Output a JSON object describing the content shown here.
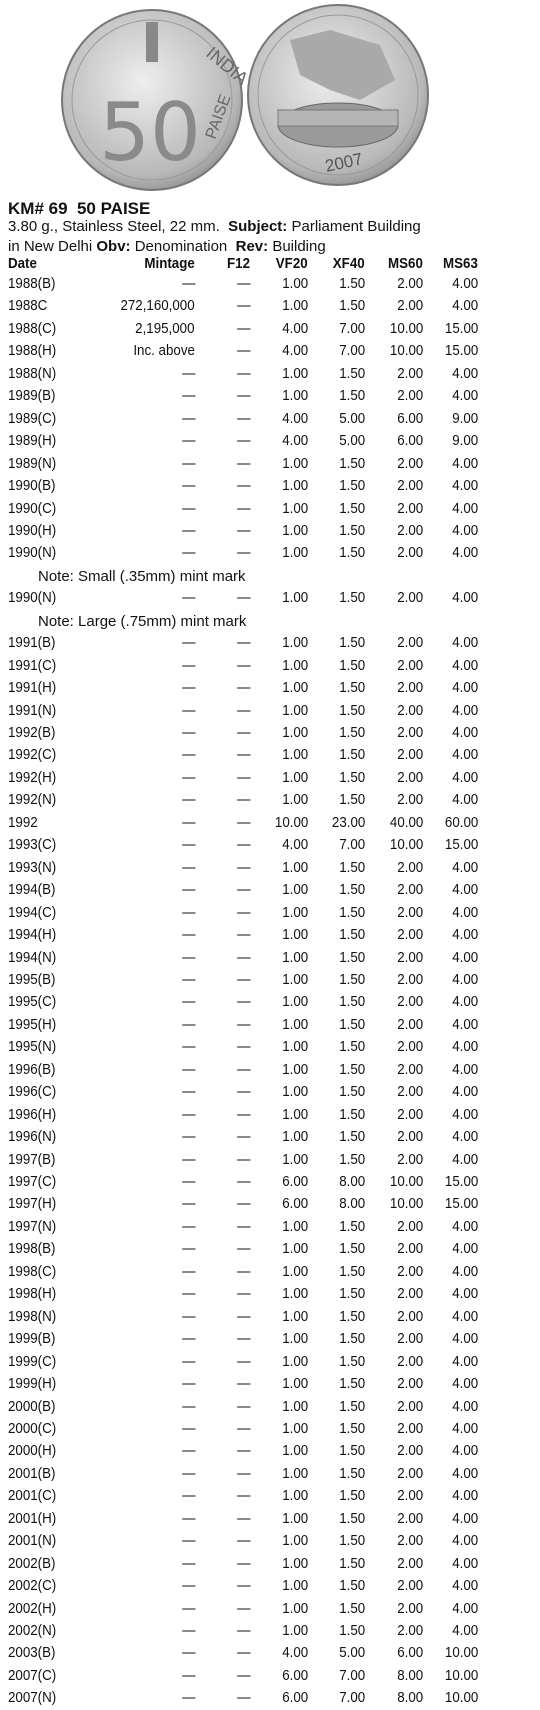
{
  "coins": {
    "obverse": {
      "legend": "INDIA",
      "denomination": "50",
      "unit": "PAISE"
    },
    "reverse": {
      "date": "2007"
    }
  },
  "header": {
    "title": "KM# 69  50 PAISE",
    "weight_metal": "3.80 g., Stainless Steel, 22 mm.",
    "subject_label": "Subject:",
    "subject": "Parliament Building",
    "subject_cont": "in New Delhi",
    "obv_label": "Obv:",
    "obv": "Denomination",
    "rev_label": "Rev:",
    "rev": "Building"
  },
  "table": {
    "columns": [
      "Date",
      "Mintage",
      "F12",
      "VF20",
      "XF40",
      "MS60",
      "MS63"
    ],
    "rows": [
      [
        "1988(B)",
        "—",
        "—",
        "1.00",
        "1.50",
        "2.00",
        "4.00"
      ],
      [
        "1988C",
        "272,160,000",
        "—",
        "1.00",
        "1.50",
        "2.00",
        "4.00"
      ],
      [
        "1988(C)",
        "2,195,000",
        "—",
        "4.00",
        "7.00",
        "10.00",
        "15.00"
      ],
      [
        "1988(H)",
        "Inc. above",
        "—",
        "4.00",
        "7.00",
        "10.00",
        "15.00"
      ],
      [
        "1988(N)",
        "—",
        "—",
        "1.00",
        "1.50",
        "2.00",
        "4.00"
      ],
      [
        "1989(B)",
        "—",
        "—",
        "1.00",
        "1.50",
        "2.00",
        "4.00"
      ],
      [
        "1989(C)",
        "—",
        "—",
        "4.00",
        "5.00",
        "6.00",
        "9.00"
      ],
      [
        "1989(H)",
        "—",
        "—",
        "4.00",
        "5.00",
        "6.00",
        "9.00"
      ],
      [
        "1989(N)",
        "—",
        "—",
        "1.00",
        "1.50",
        "2.00",
        "4.00"
      ],
      [
        "1990(B)",
        "—",
        "—",
        "1.00",
        "1.50",
        "2.00",
        "4.00"
      ],
      [
        "1990(C)",
        "—",
        "—",
        "1.00",
        "1.50",
        "2.00",
        "4.00"
      ],
      [
        "1990(H)",
        "—",
        "—",
        "1.00",
        "1.50",
        "2.00",
        "4.00"
      ],
      [
        "1990(N)",
        "—",
        "—",
        "1.00",
        "1.50",
        "2.00",
        "4.00"
      ],
      {
        "note": "Note: Small (.35mm) mint mark"
      },
      [
        "1990(N)",
        "—",
        "—",
        "1.00",
        "1.50",
        "2.00",
        "4.00"
      ],
      {
        "note": "Note: Large (.75mm) mint mark"
      },
      [
        "1991(B)",
        "—",
        "—",
        "1.00",
        "1.50",
        "2.00",
        "4.00"
      ],
      [
        "1991(C)",
        "—",
        "—",
        "1.00",
        "1.50",
        "2.00",
        "4.00"
      ],
      [
        "1991(H)",
        "—",
        "—",
        "1.00",
        "1.50",
        "2.00",
        "4.00"
      ],
      [
        "1991(N)",
        "—",
        "—",
        "1.00",
        "1.50",
        "2.00",
        "4.00"
      ],
      [
        "1992(B)",
        "—",
        "—",
        "1.00",
        "1.50",
        "2.00",
        "4.00"
      ],
      [
        "1992(C)",
        "—",
        "—",
        "1.00",
        "1.50",
        "2.00",
        "4.00"
      ],
      [
        "1992(H)",
        "—",
        "—",
        "1.00",
        "1.50",
        "2.00",
        "4.00"
      ],
      [
        "1992(N)",
        "—",
        "—",
        "1.00",
        "1.50",
        "2.00",
        "4.00"
      ],
      [
        "1992",
        "—",
        "—",
        "10.00",
        "23.00",
        "40.00",
        "60.00"
      ],
      [
        "1993(C)",
        "—",
        "—",
        "4.00",
        "7.00",
        "10.00",
        "15.00"
      ],
      [
        "1993(N)",
        "—",
        "—",
        "1.00",
        "1.50",
        "2.00",
        "4.00"
      ],
      [
        "1994(B)",
        "—",
        "—",
        "1.00",
        "1.50",
        "2.00",
        "4.00"
      ],
      [
        "1994(C)",
        "—",
        "—",
        "1.00",
        "1.50",
        "2.00",
        "4.00"
      ],
      [
        "1994(H)",
        "—",
        "—",
        "1.00",
        "1.50",
        "2.00",
        "4.00"
      ],
      [
        "1994(N)",
        "—",
        "—",
        "1.00",
        "1.50",
        "2.00",
        "4.00"
      ],
      [
        "1995(B)",
        "—",
        "—",
        "1.00",
        "1.50",
        "2.00",
        "4.00"
      ],
      [
        "1995(C)",
        "—",
        "—",
        "1.00",
        "1.50",
        "2.00",
        "4.00"
      ],
      [
        "1995(H)",
        "—",
        "—",
        "1.00",
        "1.50",
        "2.00",
        "4.00"
      ],
      [
        "1995(N)",
        "—",
        "—",
        "1.00",
        "1.50",
        "2.00",
        "4.00"
      ],
      [
        "1996(B)",
        "—",
        "—",
        "1.00",
        "1.50",
        "2.00",
        "4.00"
      ],
      [
        "1996(C)",
        "—",
        "—",
        "1.00",
        "1.50",
        "2.00",
        "4.00"
      ],
      [
        "1996(H)",
        "—",
        "—",
        "1.00",
        "1.50",
        "2.00",
        "4.00"
      ],
      [
        "1996(N)",
        "—",
        "—",
        "1.00",
        "1.50",
        "2.00",
        "4.00"
      ],
      [
        "1997(B)",
        "—",
        "—",
        "1.00",
        "1.50",
        "2.00",
        "4.00"
      ],
      [
        "1997(C)",
        "—",
        "—",
        "6.00",
        "8.00",
        "10.00",
        "15.00"
      ],
      [
        "1997(H)",
        "—",
        "—",
        "6.00",
        "8.00",
        "10.00",
        "15.00"
      ],
      [
        "1997(N)",
        "—",
        "—",
        "1.00",
        "1.50",
        "2.00",
        "4.00"
      ],
      [
        "1998(B)",
        "—",
        "—",
        "1.00",
        "1.50",
        "2.00",
        "4.00"
      ],
      [
        "1998(C)",
        "—",
        "—",
        "1.00",
        "1.50",
        "2.00",
        "4.00"
      ],
      [
        "1998(H)",
        "—",
        "—",
        "1.00",
        "1.50",
        "2.00",
        "4.00"
      ],
      [
        "1998(N)",
        "—",
        "—",
        "1.00",
        "1.50",
        "2.00",
        "4.00"
      ],
      [
        "1999(B)",
        "—",
        "—",
        "1.00",
        "1.50",
        "2.00",
        "4.00"
      ],
      [
        "1999(C)",
        "—",
        "—",
        "1.00",
        "1.50",
        "2.00",
        "4.00"
      ],
      [
        "1999(H)",
        "—",
        "—",
        "1.00",
        "1.50",
        "2.00",
        "4.00"
      ],
      [
        "2000(B)",
        "—",
        "—",
        "1.00",
        "1.50",
        "2.00",
        "4.00"
      ],
      [
        "2000(C)",
        "—",
        "—",
        "1.00",
        "1.50",
        "2.00",
        "4.00"
      ],
      [
        "2000(H)",
        "—",
        "—",
        "1.00",
        "1.50",
        "2.00",
        "4.00"
      ],
      [
        "2001(B)",
        "—",
        "—",
        "1.00",
        "1.50",
        "2.00",
        "4.00"
      ],
      [
        "2001(C)",
        "—",
        "—",
        "1.00",
        "1.50",
        "2.00",
        "4.00"
      ],
      [
        "2001(H)",
        "—",
        "—",
        "1.00",
        "1.50",
        "2.00",
        "4.00"
      ],
      [
        "2001(N)",
        "—",
        "—",
        "1.00",
        "1.50",
        "2.00",
        "4.00"
      ],
      [
        "2002(B)",
        "—",
        "—",
        "1.00",
        "1.50",
        "2.00",
        "4.00"
      ],
      [
        "2002(C)",
        "—",
        "—",
        "1.00",
        "1.50",
        "2.00",
        "4.00"
      ],
      [
        "2002(H)",
        "—",
        "—",
        "1.00",
        "1.50",
        "2.00",
        "4.00"
      ],
      [
        "2002(N)",
        "—",
        "—",
        "1.00",
        "1.50",
        "2.00",
        "4.00"
      ],
      [
        "2003(B)",
        "—",
        "—",
        "4.00",
        "5.00",
        "6.00",
        "10.00"
      ],
      [
        "2007(C)",
        "—",
        "—",
        "6.00",
        "7.00",
        "8.00",
        "10.00"
      ],
      [
        "2007(N)",
        "—",
        "—",
        "6.00",
        "7.00",
        "8.00",
        "10.00"
      ]
    ]
  }
}
